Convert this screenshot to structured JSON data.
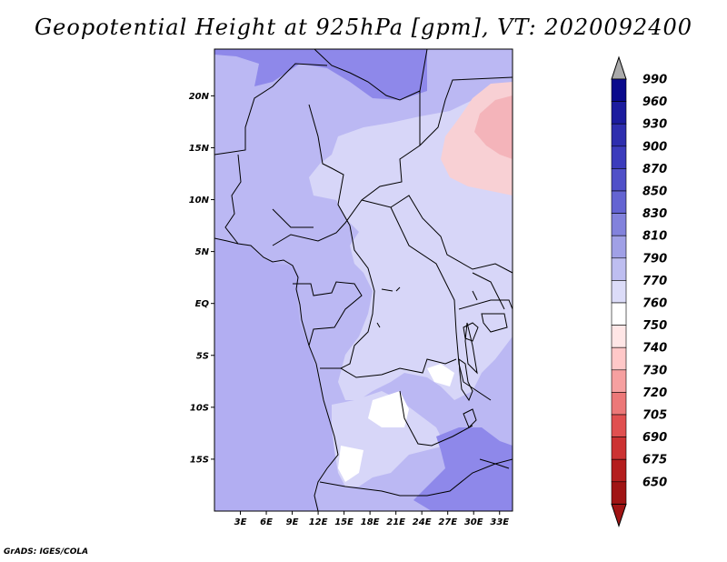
{
  "title": "Geopotential Height at 925hPa [gpm], VT: 2020092400",
  "credit": "GrADS: IGES/COLA",
  "map": {
    "lon_labels": [
      "3E",
      "6E",
      "9E",
      "12E",
      "15E",
      "18E",
      "21E",
      "24E",
      "27E",
      "30E",
      "33E"
    ],
    "lat_labels": [
      "20N",
      "15N",
      "10N",
      "5N",
      "EQ",
      "5S",
      "10S",
      "15S"
    ],
    "lon_range": [
      0,
      34.5
    ],
    "lat_range": [
      -20,
      24.5
    ]
  },
  "colorbar": {
    "levels": [
      "990",
      "960",
      "930",
      "900",
      "870",
      "850",
      "830",
      "810",
      "790",
      "770",
      "760",
      "750",
      "740",
      "730",
      "720",
      "705",
      "690",
      "675",
      "650"
    ],
    "colors": [
      "#0a0a8c",
      "#1c1c9e",
      "#2e2eae",
      "#3c3cbc",
      "#5050c8",
      "#6464d2",
      "#8282dc",
      "#a0a0e6",
      "#bebef0",
      "#dcdcf8",
      "#ffffff",
      "#ffe6e6",
      "#ffc8c8",
      "#f6a0a0",
      "#ec7878",
      "#e05050",
      "#cc3232",
      "#b41e1e",
      "#a01414"
    ],
    "top_arrow_color": "#aaaaaa",
    "bottom_arrow_color": "#a01414"
  },
  "palette": {
    "ocean": "#b2aef2",
    "land_mid": "#bbb8f3",
    "land_light": "#d7d6f8",
    "white": "#ffffff",
    "high": "#8e88ea",
    "pink": "#f8d0d4",
    "pink_dark": "#f4b4ba"
  }
}
